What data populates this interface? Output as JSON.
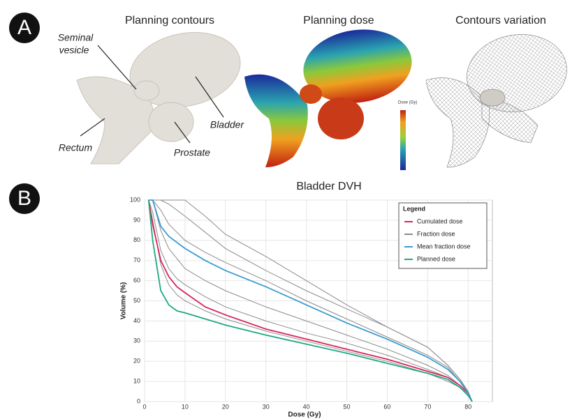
{
  "panel_a": {
    "label": "A",
    "titles": [
      "Planning contours",
      "Planning dose",
      "Contours variation"
    ],
    "annotations": {
      "seminal_1": "Seminal",
      "seminal_2": "vesicle",
      "bladder": "Bladder",
      "rectum": "Rectum",
      "prostate": "Prostate"
    },
    "colorbar_title": "Dose (Gy)"
  },
  "panel_b_label": "B",
  "chart_data": {
    "type": "line",
    "title": "Bladder DVH",
    "x_label": "Dose (Gy)",
    "y_label": "Volume (%)",
    "legend_title": "Legend",
    "legend": "upper right",
    "grid": true,
    "x": [
      1,
      2,
      4,
      6,
      8,
      10,
      15,
      20,
      30,
      40,
      50,
      60,
      70,
      75,
      78,
      80,
      81
    ],
    "xlim": [
      0,
      86
    ],
    "xticks": [
      0,
      10,
      20,
      30,
      40,
      50,
      60,
      70,
      80
    ],
    "ylim": [
      0,
      100
    ],
    "yticks": [
      0,
      10,
      20,
      30,
      40,
      50,
      60,
      70,
      80,
      90,
      100
    ],
    "series": [
      {
        "name": "Cumulated dose",
        "color": "#d6245a",
        "values": [
          100,
          88,
          70,
          62,
          57,
          54,
          47,
          43,
          36,
          31,
          26,
          21,
          15,
          12,
          8,
          4,
          0
        ]
      },
      {
        "name": "Fraction dose",
        "color": "#8a8a8a",
        "values": [
          100,
          100,
          100,
          100,
          100,
          100,
          92,
          83,
          72,
          60,
          48,
          37,
          27,
          18,
          11,
          5,
          0
        ]
      },
      {
        "name": "Mean fraction dose",
        "color": "#3a9bd0",
        "values": [
          100,
          100,
          87,
          82,
          79,
          76,
          70,
          65,
          57,
          48,
          39,
          31,
          22,
          16,
          10,
          4,
          0
        ]
      },
      {
        "name": "Planned dose",
        "color": "#1fa784",
        "values": [
          100,
          80,
          55,
          48,
          45,
          44,
          41,
          38,
          33,
          28.5,
          24,
          19,
          14,
          11,
          7,
          3,
          0
        ]
      },
      {
        "color": "#8a8a8a",
        "values": [
          100,
          100,
          100,
          98,
          95,
          92,
          84,
          76,
          65,
          55,
          46,
          37,
          27,
          18,
          11,
          5,
          0
        ]
      },
      {
        "color": "#8a8a8a",
        "values": [
          100,
          100,
          95,
          88,
          84,
          80,
          74,
          69,
          60,
          50,
          41,
          32,
          23,
          17,
          10,
          5,
          0
        ]
      },
      {
        "color": "#8a8a8a",
        "values": [
          100,
          100,
          85,
          76,
          71,
          66,
          60,
          55,
          47,
          40,
          33,
          26,
          18,
          13,
          8,
          4,
          0
        ]
      },
      {
        "color": "#8a8a8a",
        "values": [
          100,
          94,
          75,
          66,
          61,
          58,
          52,
          47,
          40,
          34,
          29,
          23,
          16,
          12,
          8,
          4,
          0
        ]
      },
      {
        "color": "#8a8a8a",
        "values": [
          100,
          90,
          68,
          58,
          53,
          50,
          45,
          41,
          35,
          30,
          25,
          20,
          14,
          10,
          7,
          3,
          0
        ]
      }
    ]
  }
}
